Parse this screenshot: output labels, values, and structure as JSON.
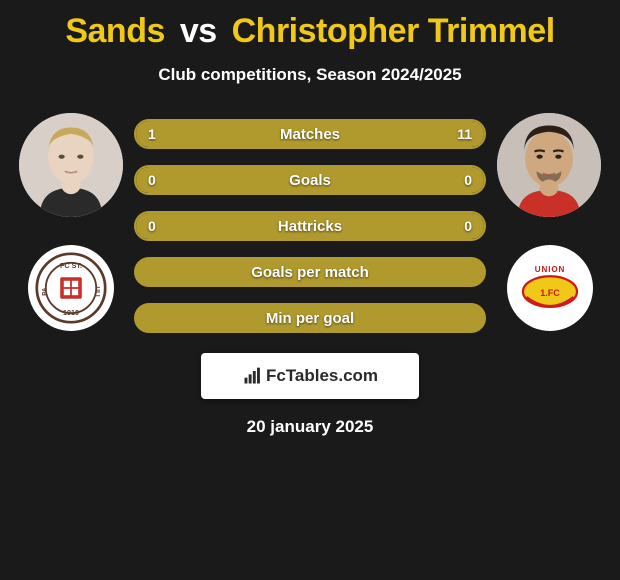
{
  "title": {
    "player1": "Sands",
    "vs": "vs",
    "player2": "Christopher Trimmel",
    "player1_color": "#f0c818",
    "player2_color": "#f0c818",
    "vs_color": "#ffffff",
    "fontsize": 34
  },
  "subtitle": "Club competitions, Season 2024/2025",
  "colors": {
    "page_bg": "#1a1a1a",
    "pill_bg": "#3a3a3a",
    "pill_fill": "#b09a2e",
    "pill_border": "#b09a2e",
    "text": "#ffffff",
    "card_bg": "#ffffff",
    "avatar_bg": "#d8d0c8"
  },
  "stats": [
    {
      "label": "Matches",
      "left_val": "1",
      "right_val": "11",
      "left_pct": 8.3,
      "right_pct": 91.7,
      "show_vals": true,
      "full": false
    },
    {
      "label": "Goals",
      "left_val": "0",
      "right_val": "0",
      "left_pct": 50,
      "right_pct": 50,
      "show_vals": true,
      "full": false
    },
    {
      "label": "Hattricks",
      "left_val": "0",
      "right_val": "0",
      "left_pct": 50,
      "right_pct": 50,
      "show_vals": true,
      "full": false
    },
    {
      "label": "Goals per match",
      "left_val": "",
      "right_val": "",
      "left_pct": 100,
      "right_pct": 0,
      "show_vals": false,
      "full": true
    },
    {
      "label": "Min per goal",
      "left_val": "",
      "right_val": "",
      "left_pct": 100,
      "right_pct": 0,
      "show_vals": false,
      "full": true
    }
  ],
  "player_left": {
    "avatar_icon": "player-portrait-1",
    "club_icon": "st-pauli-badge"
  },
  "player_right": {
    "avatar_icon": "player-portrait-2",
    "club_icon": "union-berlin-badge"
  },
  "brand": {
    "icon": "bar-chart-icon",
    "text": "FcTables.com"
  },
  "date": "20 january 2025"
}
